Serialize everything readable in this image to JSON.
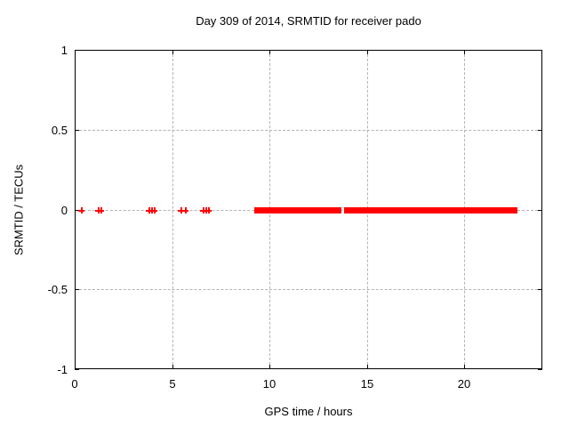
{
  "chart_data": {
    "type": "scatter",
    "title": "Day 309 of 2014, SRMTID for receiver pado",
    "xlabel": "GPS time / hours",
    "ylabel": "SRMTID / TECUs",
    "xlim": [
      0,
      24
    ],
    "ylim": [
      -1,
      1
    ],
    "xticks": [
      0,
      5,
      10,
      15,
      20
    ],
    "yticks": [
      -1,
      -0.5,
      0,
      0.5,
      1
    ],
    "grid": true,
    "legend": "none",
    "marker": "plus",
    "colors": {
      "marker": "#ff0000",
      "grid": "#b3b3b3",
      "axis": "#000000",
      "text": "#000000",
      "background": "#ffffff"
    },
    "series": [
      {
        "name": "SRMTID",
        "y_constant": 0,
        "scatter_x": [
          0.32,
          1.19,
          1.32,
          3.79,
          3.92,
          4.06,
          5.43,
          5.66,
          6.55,
          6.7,
          6.85
        ],
        "dense_ranges_x": [
          [
            9.2,
            13.69
          ],
          [
            13.81,
            22.72
          ]
        ]
      }
    ]
  }
}
